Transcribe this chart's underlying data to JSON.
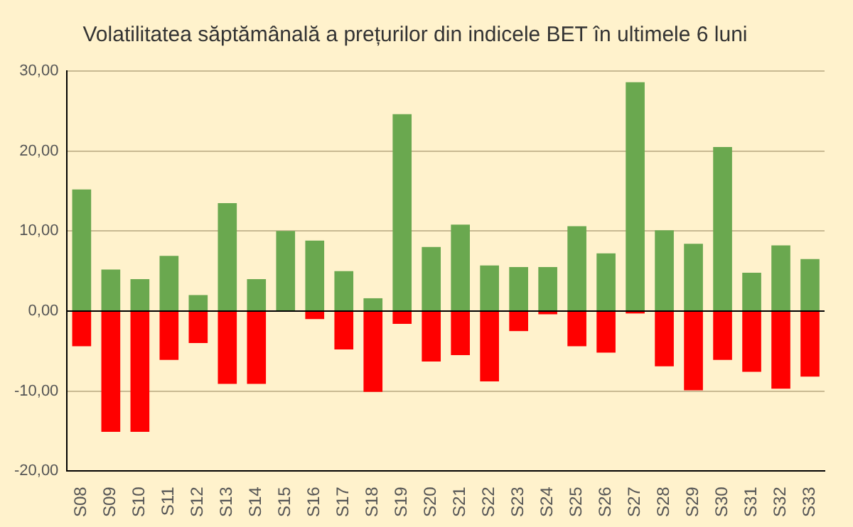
{
  "chart_data": {
    "type": "bar",
    "title": "Volatilitatea săptămânală a prețurilor din indicele BET în ultimele 6 luni",
    "categories": [
      "S08",
      "S09",
      "S10",
      "S11",
      "S12",
      "S13",
      "S14",
      "S15",
      "S16",
      "S17",
      "S18",
      "S19",
      "S20",
      "S21",
      "S22",
      "S23",
      "S24",
      "S25",
      "S26",
      "S27",
      "S28",
      "S29",
      "S30",
      "S31",
      "S32",
      "S33"
    ],
    "series": [
      {
        "color": "#6aa84f",
        "values": [
          15.2,
          5.2,
          4.0,
          6.9,
          2.0,
          13.5,
          4.0,
          10.0,
          8.8,
          5.0,
          1.6,
          24.6,
          8.0,
          10.8,
          5.7,
          5.5,
          5.5,
          10.6,
          7.2,
          28.6,
          10.1,
          8.4,
          20.5,
          4.8,
          8.2,
          6.5
        ]
      },
      {
        "color": "#ff0000",
        "values": [
          -4.4,
          -15.1,
          -15.1,
          -6.1,
          -4.0,
          -9.1,
          -9.1,
          0,
          -1.0,
          -4.8,
          -10.1,
          -1.6,
          -6.3,
          -5.5,
          -8.8,
          -2.5,
          -0.4,
          -4.4,
          -5.2,
          -0.3,
          -6.9,
          -9.9,
          -6.1,
          -7.6,
          -9.7,
          -8.2
        ]
      }
    ],
    "stacked": true,
    "ylim": [
      -20,
      30
    ],
    "yticks": [
      {
        "value": -20,
        "label": "-20,00"
      },
      {
        "value": -10,
        "label": "-10,00"
      },
      {
        "value": 0,
        "label": "0,00"
      },
      {
        "value": 10,
        "label": "10,00"
      },
      {
        "value": 20,
        "label": "20,00"
      },
      {
        "value": 30,
        "label": "30,00"
      }
    ],
    "grid": "y",
    "legend": false
  }
}
